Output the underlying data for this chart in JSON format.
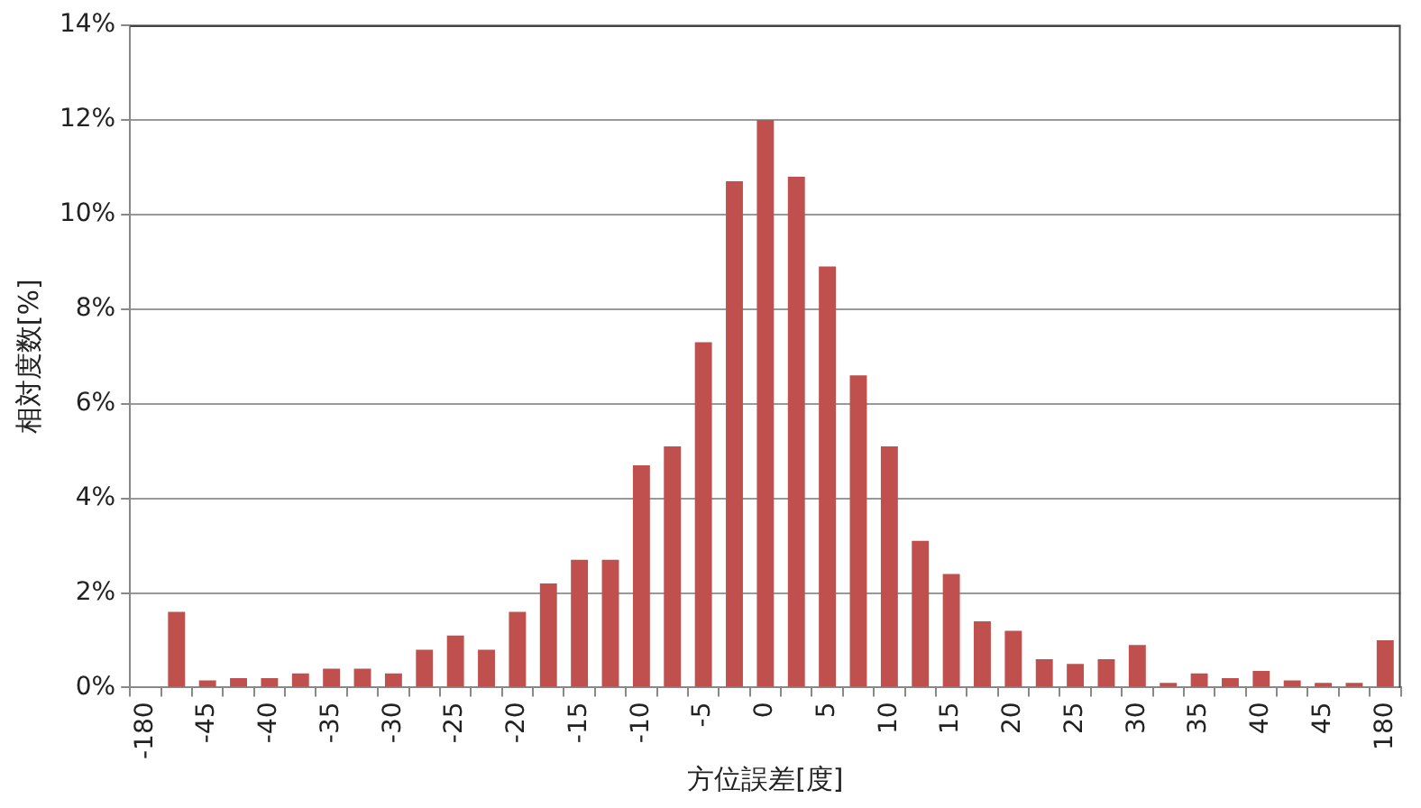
{
  "chart_data": {
    "type": "bar",
    "xlabel": "方位誤差[度]",
    "ylabel": "相対度数[%]",
    "categories": [
      "-180",
      null,
      "-45",
      null,
      "-40",
      null,
      "-35",
      null,
      "-30",
      null,
      "-25",
      null,
      "-20",
      null,
      "-15",
      null,
      "-10",
      null,
      "-5",
      null,
      "0",
      null,
      "5",
      null,
      "10",
      null,
      "15",
      null,
      "20",
      null,
      "25",
      null,
      "30",
      null,
      "35",
      null,
      "40",
      null,
      "45",
      null,
      "180"
    ],
    "values": [
      0,
      1.6,
      0.15,
      0.2,
      0.2,
      0.3,
      0.4,
      0.4,
      0.3,
      0.8,
      1.1,
      0.8,
      1.6,
      2.2,
      2.7,
      2.7,
      4.7,
      5.1,
      7.3,
      10.7,
      12.0,
      10.8,
      8.9,
      6.6,
      5.1,
      3.1,
      2.4,
      1.4,
      1.2,
      0.6,
      0.5,
      0.6,
      0.9,
      0.1,
      0.3,
      0.2,
      0.35,
      0.15,
      0.1,
      0.1,
      1.0
    ],
    "color": "#c0504d",
    "ylim": [
      0,
      14
    ],
    "yticks": [
      {
        "value": 0,
        "label": "0%"
      },
      {
        "value": 2,
        "label": "2%"
      },
      {
        "value": 4,
        "label": "4%"
      },
      {
        "value": 6,
        "label": "6%"
      },
      {
        "value": 8,
        "label": "8%"
      },
      {
        "value": 10,
        "label": "10%"
      },
      {
        "value": 12,
        "label": "12%"
      },
      {
        "value": 14,
        "label": "14%"
      }
    ],
    "grid": "y",
    "legend": false
  }
}
